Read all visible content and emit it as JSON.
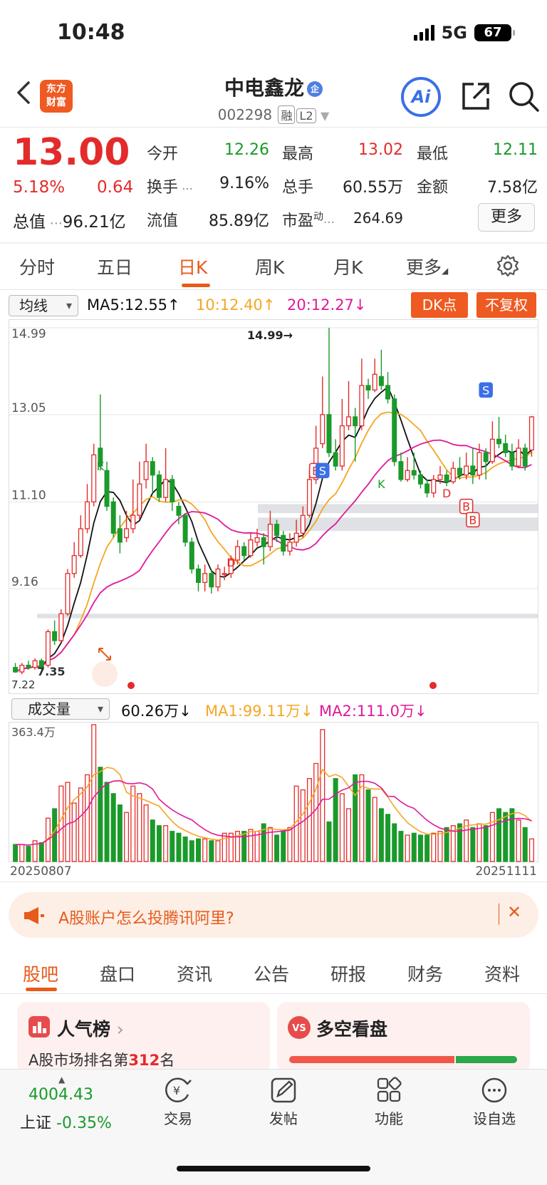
{
  "status": {
    "time": "10:48",
    "network": "5G",
    "battery": "67"
  },
  "header": {
    "logo": "东方\n财富",
    "title": "中电鑫龙",
    "badge": "企",
    "code": "002298",
    "tags": [
      "融",
      "L2"
    ],
    "ai_label": "Ai"
  },
  "quote": {
    "price": "13.00",
    "pct": "5.18%",
    "change": "0.64",
    "market_value_label": "总值",
    "market_value": "96.21亿",
    "fields": [
      {
        "label": "今开",
        "value": "12.26",
        "color": "green"
      },
      {
        "label": "最高",
        "value": "13.02",
        "color": "red"
      },
      {
        "label": "最低",
        "value": "12.11",
        "color": "green"
      },
      {
        "label": "换手",
        "value": "9.16%",
        "color": "normal"
      },
      {
        "label": "总手",
        "value": "60.55万",
        "color": "normal"
      },
      {
        "label": "金额",
        "value": "7.58亿",
        "color": "normal"
      },
      {
        "label": "流值",
        "value": "85.89亿",
        "color": "normal"
      },
      {
        "label": "市盈",
        "value": "264.69",
        "color": "normal"
      }
    ],
    "pe_sup": "动",
    "more_label": "更多"
  },
  "period_tabs": [
    "分时",
    "五日",
    "日K",
    "周K",
    "月K",
    "更多"
  ],
  "active_period": "日K",
  "ma_bar": {
    "select": "均线",
    "ma5": "MA5:12.55↑",
    "ma10": "10:12.40↑",
    "ma20": "20:12.27↓",
    "dk": "DK点",
    "fq": "不复权"
  },
  "vol_bar": {
    "select": "成交量",
    "vol": "60.26万↓",
    "ma1": "MA1:99.11万↓",
    "ma2": "MA2:111.0万↓"
  },
  "dates": {
    "start": "20250807",
    "end": "20251111"
  },
  "banner": {
    "text": "A股账户怎么投腾讯阿里?",
    "close": "✕"
  },
  "section_tabs": [
    "股吧",
    "盘口",
    "资讯",
    "公告",
    "研报",
    "财务",
    "资料"
  ],
  "cards": {
    "popular": "人气榜",
    "popular_sub_prefix": "A股市场排名第",
    "popular_rank": "312",
    "popular_sub_suffix": "名",
    "vs": "多空看盘"
  },
  "bottom": {
    "index_value": "4004.43",
    "index_name": "上证",
    "index_change": "-0.35%",
    "nav": [
      "交易",
      "发帖",
      "功能",
      "设自选"
    ]
  },
  "colors": {
    "up": "#e32b2b",
    "down": "#1a9a2a",
    "accent": "#e85a1a",
    "ma5": "#111111",
    "ma10": "#f5a623",
    "ma20": "#e0199a"
  },
  "chart_data": {
    "type": "candlestick",
    "ylim": [
      7.22,
      14.99
    ],
    "y_ticks": [
      "14.99",
      "13.05",
      "11.10",
      "9.16"
    ],
    "low_label": "7.22",
    "low_mark": "7.35",
    "high_mark": "14.99→",
    "volume_max_label": "363.4万",
    "candles": [
      [
        7.4,
        7.3,
        7.5,
        7.28
      ],
      [
        7.3,
        7.45,
        7.5,
        7.25
      ],
      [
        7.45,
        7.4,
        7.55,
        7.35
      ],
      [
        7.4,
        7.55,
        7.6,
        7.35
      ],
      [
        7.55,
        7.4,
        7.6,
        7.35
      ],
      [
        7.45,
        8.2,
        8.25,
        7.4
      ],
      [
        8.2,
        8.0,
        8.45,
        7.9
      ],
      [
        8.0,
        8.6,
        8.7,
        7.95
      ],
      [
        8.6,
        9.5,
        9.6,
        8.55
      ],
      [
        9.5,
        9.9,
        10.2,
        9.4
      ],
      [
        9.9,
        10.5,
        10.8,
        9.85
      ],
      [
        10.5,
        11.1,
        11.5,
        10.4
      ],
      [
        11.1,
        12.15,
        12.4,
        11.0
      ],
      [
        12.3,
        11.9,
        13.5,
        11.8
      ],
      [
        11.8,
        11.0,
        12.0,
        10.9
      ],
      [
        11.1,
        10.4,
        11.2,
        10.3
      ],
      [
        10.5,
        10.2,
        10.8,
        9.95
      ],
      [
        10.3,
        10.5,
        10.9,
        10.2
      ],
      [
        10.5,
        10.8,
        11.6,
        10.4
      ],
      [
        10.8,
        11.5,
        12.0,
        10.7
      ],
      [
        11.6,
        12.0,
        12.4,
        11.4
      ],
      [
        12.0,
        11.7,
        12.1,
        11.3
      ],
      [
        11.7,
        11.2,
        11.8,
        11.1
      ],
      [
        11.2,
        11.6,
        12.3,
        11.1
      ],
      [
        11.6,
        11.1,
        11.7,
        10.9
      ],
      [
        11.0,
        10.8,
        11.1,
        10.6
      ],
      [
        10.8,
        10.2,
        10.85,
        10.1
      ],
      [
        10.2,
        9.6,
        10.3,
        9.5
      ],
      [
        9.6,
        9.3,
        9.7,
        9.1
      ],
      [
        9.3,
        9.5,
        9.7,
        9.1
      ],
      [
        9.5,
        9.2,
        9.6,
        9.05
      ],
      [
        9.2,
        9.6,
        9.7,
        9.1
      ],
      [
        9.5,
        9.5,
        9.65,
        9.35
      ],
      [
        9.5,
        9.8,
        9.9,
        9.4
      ],
      [
        9.8,
        10.1,
        10.25,
        9.7
      ],
      [
        10.1,
        9.9,
        10.2,
        9.8
      ],
      [
        9.9,
        10.25,
        10.4,
        9.85
      ],
      [
        10.2,
        10.3,
        10.5,
        10.1
      ],
      [
        10.3,
        10.1,
        10.4,
        9.7
      ],
      [
        10.1,
        10.6,
        10.9,
        10.0
      ],
      [
        10.6,
        10.35,
        10.7,
        10.2
      ],
      [
        10.35,
        10.0,
        10.45,
        9.9
      ],
      [
        10.0,
        10.2,
        10.4,
        9.9
      ],
      [
        10.2,
        10.4,
        10.7,
        10.1
      ],
      [
        10.4,
        10.8,
        11.0,
        10.3
      ],
      [
        10.8,
        11.6,
        11.8,
        10.75
      ],
      [
        11.6,
        12.3,
        12.8,
        11.5
      ],
      [
        12.4,
        13.05,
        13.9,
        12.3
      ],
      [
        13.05,
        12.2,
        14.99,
        12.1
      ],
      [
        12.2,
        11.9,
        12.5,
        11.8
      ],
      [
        11.9,
        12.8,
        13.4,
        11.8
      ],
      [
        12.8,
        13.0,
        13.8,
        12.7
      ],
      [
        13.0,
        12.8,
        13.2,
        12.0
      ],
      [
        12.8,
        13.7,
        14.3,
        12.7
      ],
      [
        13.7,
        13.6,
        13.85,
        13.4
      ],
      [
        13.6,
        13.95,
        14.3,
        13.55
      ],
      [
        13.9,
        13.7,
        14.5,
        13.6
      ],
      [
        13.7,
        13.4,
        14.0,
        13.3
      ],
      [
        13.4,
        12.0,
        13.5,
        11.9
      ],
      [
        12.0,
        11.6,
        12.2,
        11.55
      ],
      [
        11.6,
        11.8,
        12.1,
        11.55
      ],
      [
        11.8,
        11.7,
        12.2,
        11.6
      ],
      [
        11.7,
        11.5,
        11.8,
        11.4
      ],
      [
        11.5,
        11.3,
        11.6,
        11.2
      ],
      [
        11.3,
        11.6,
        11.7,
        11.2
      ],
      [
        11.6,
        11.7,
        11.9,
        11.5
      ],
      [
        11.7,
        11.55,
        11.8,
        11.45
      ],
      [
        11.55,
        11.85,
        12.0,
        11.5
      ],
      [
        11.85,
        11.7,
        12.1,
        11.6
      ],
      [
        11.7,
        11.9,
        12.2,
        11.6
      ],
      [
        11.9,
        11.7,
        12.3,
        11.5
      ],
      [
        11.7,
        12.2,
        12.4,
        11.6
      ],
      [
        12.2,
        12.0,
        12.3,
        11.6
      ],
      [
        12.0,
        12.5,
        12.9,
        11.95
      ],
      [
        12.5,
        12.4,
        13.0,
        12.3
      ],
      [
        12.4,
        12.2,
        12.6,
        12.1
      ],
      [
        12.2,
        11.9,
        12.4,
        11.8
      ],
      [
        11.9,
        12.3,
        12.5,
        11.85
      ],
      [
        12.3,
        11.9,
        12.4,
        11.8
      ],
      [
        12.26,
        13.0,
        13.02,
        12.11
      ]
    ],
    "volumes": [
      45,
      45,
      40,
      55,
      50,
      115,
      140,
      200,
      210,
      155,
      195,
      230,
      363,
      250,
      210,
      180,
      150,
      130,
      200,
      180,
      150,
      110,
      95,
      95,
      80,
      75,
      65,
      55,
      60,
      60,
      55,
      55,
      75,
      75,
      80,
      80,
      85,
      80,
      100,
      90,
      70,
      80,
      90,
      200,
      190,
      220,
      260,
      350,
      105,
      220,
      180,
      140,
      230,
      230,
      190,
      170,
      140,
      125,
      100,
      80,
      70,
      75,
      70,
      70,
      75,
      80,
      90,
      95,
      100,
      110,
      90,
      100,
      95,
      130,
      140,
      130,
      140,
      110,
      90,
      60
    ],
    "signals": [
      "K",
      "K",
      "D",
      "D",
      "B",
      "S",
      "S",
      "B",
      "B"
    ]
  }
}
